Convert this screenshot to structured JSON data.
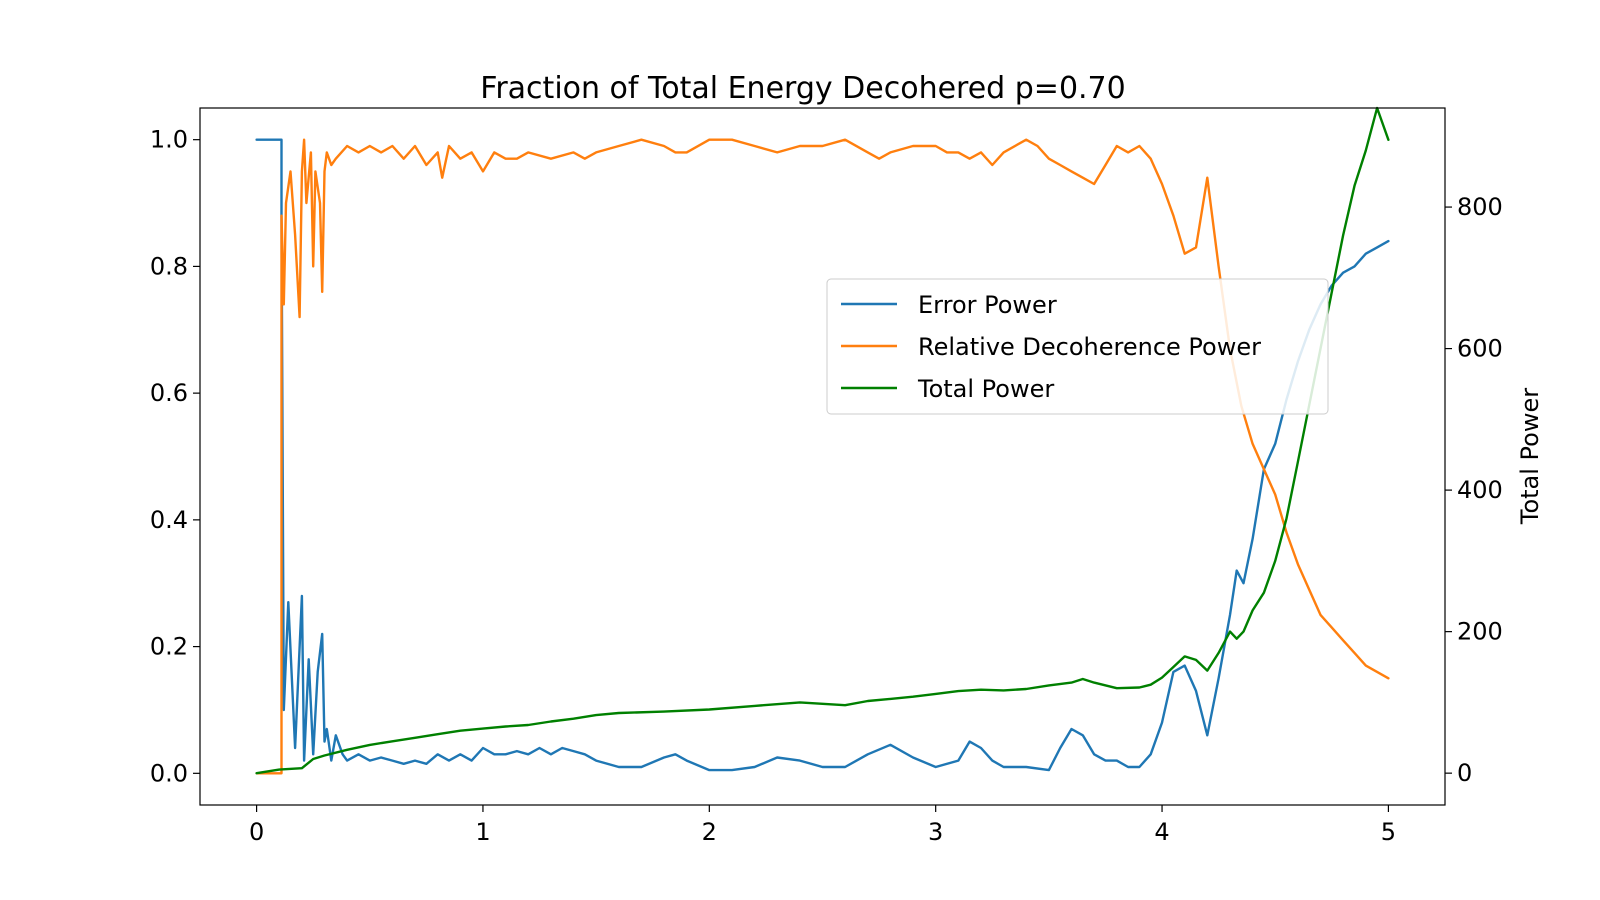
{
  "chart_data": {
    "type": "line",
    "title": "Fraction of Total Energy Decohered p=0.70",
    "xlabel": "",
    "ylabel_left": "",
    "ylabel_right": "Total Power",
    "xlim": [
      -0.25,
      5.25
    ],
    "ylim_left": [
      -0.05,
      1.05
    ],
    "ylim_right": [
      -45,
      940
    ],
    "x_ticks": [
      0,
      1,
      2,
      3,
      4,
      5
    ],
    "x_tick_labels": [
      "0",
      "1",
      "2",
      "3",
      "4",
      "5"
    ],
    "y_left_ticks": [
      0.0,
      0.2,
      0.4,
      0.6,
      0.8,
      1.0
    ],
    "y_left_tick_labels": [
      "0.0",
      "0.2",
      "0.4",
      "0.6",
      "0.8",
      "1.0"
    ],
    "y_right_ticks": [
      0,
      200,
      400,
      600,
      800
    ],
    "y_right_tick_labels": [
      "0",
      "200",
      "400",
      "600",
      "800"
    ],
    "grid": false,
    "legend_position": "center-right",
    "series": [
      {
        "name": "Error Power",
        "axis": "left",
        "color": "#1f77b4",
        "x": [
          0,
          0.11,
          0.11,
          0.12,
          0.14,
          0.17,
          0.2,
          0.21,
          0.23,
          0.25,
          0.27,
          0.29,
          0.3,
          0.31,
          0.33,
          0.35,
          0.38,
          0.4,
          0.45,
          0.5,
          0.55,
          0.6,
          0.65,
          0.7,
          0.75,
          0.8,
          0.85,
          0.9,
          0.95,
          1.0,
          1.05,
          1.1,
          1.15,
          1.2,
          1.25,
          1.3,
          1.35,
          1.4,
          1.45,
          1.5,
          1.6,
          1.7,
          1.8,
          1.85,
          1.9,
          2.0,
          2.1,
          2.2,
          2.3,
          2.4,
          2.5,
          2.6,
          2.7,
          2.8,
          2.9,
          3.0,
          3.1,
          3.15,
          3.2,
          3.25,
          3.3,
          3.4,
          3.5,
          3.55,
          3.6,
          3.65,
          3.7,
          3.75,
          3.8,
          3.85,
          3.9,
          3.95,
          4.0,
          4.05,
          4.1,
          4.15,
          4.2,
          4.25,
          4.3,
          4.33,
          4.36,
          4.4,
          4.45,
          4.5,
          4.55,
          4.6,
          4.65,
          4.7,
          4.75,
          4.8,
          4.85,
          4.9,
          4.95,
          5.0
        ],
        "y": [
          1.0,
          1.0,
          0.88,
          0.1,
          0.27,
          0.04,
          0.28,
          0.02,
          0.18,
          0.03,
          0.16,
          0.22,
          0.05,
          0.07,
          0.02,
          0.06,
          0.03,
          0.02,
          0.03,
          0.02,
          0.025,
          0.02,
          0.015,
          0.02,
          0.015,
          0.03,
          0.02,
          0.03,
          0.02,
          0.04,
          0.03,
          0.03,
          0.035,
          0.03,
          0.04,
          0.03,
          0.04,
          0.035,
          0.03,
          0.02,
          0.01,
          0.01,
          0.025,
          0.03,
          0.02,
          0.005,
          0.005,
          0.01,
          0.025,
          0.02,
          0.01,
          0.01,
          0.03,
          0.045,
          0.025,
          0.01,
          0.02,
          0.05,
          0.04,
          0.02,
          0.01,
          0.01,
          0.005,
          0.04,
          0.07,
          0.06,
          0.03,
          0.02,
          0.02,
          0.01,
          0.01,
          0.03,
          0.08,
          0.16,
          0.17,
          0.13,
          0.06,
          0.15,
          0.25,
          0.32,
          0.3,
          0.37,
          0.48,
          0.52,
          0.59,
          0.65,
          0.7,
          0.74,
          0.77,
          0.79,
          0.8,
          0.82,
          0.83,
          0.84
        ]
      },
      {
        "name": "Relative Decoherence Power",
        "axis": "left",
        "color": "#ff7f0e",
        "x": [
          0,
          0.11,
          0.11,
          0.12,
          0.13,
          0.15,
          0.17,
          0.19,
          0.2,
          0.21,
          0.22,
          0.24,
          0.25,
          0.26,
          0.28,
          0.29,
          0.3,
          0.31,
          0.33,
          0.35,
          0.4,
          0.45,
          0.5,
          0.55,
          0.6,
          0.65,
          0.7,
          0.75,
          0.8,
          0.82,
          0.85,
          0.9,
          0.95,
          1.0,
          1.05,
          1.1,
          1.15,
          1.2,
          1.3,
          1.4,
          1.45,
          1.5,
          1.6,
          1.7,
          1.8,
          1.85,
          1.9,
          2.0,
          2.1,
          2.2,
          2.3,
          2.4,
          2.5,
          2.6,
          2.7,
          2.75,
          2.8,
          2.9,
          3.0,
          3.05,
          3.1,
          3.15,
          3.2,
          3.25,
          3.3,
          3.4,
          3.45,
          3.5,
          3.55,
          3.6,
          3.65,
          3.7,
          3.75,
          3.8,
          3.85,
          3.9,
          3.95,
          4.0,
          4.05,
          4.1,
          4.15,
          4.2,
          4.25,
          4.3,
          4.35,
          4.4,
          4.45,
          4.5,
          4.55,
          4.6,
          4.65,
          4.7,
          4.75,
          4.8,
          4.85,
          4.9,
          4.95,
          5.0
        ],
        "y": [
          0.0,
          0.0,
          0.88,
          0.74,
          0.9,
          0.95,
          0.85,
          0.72,
          0.95,
          1.0,
          0.9,
          0.98,
          0.8,
          0.95,
          0.9,
          0.76,
          0.95,
          0.98,
          0.96,
          0.97,
          0.99,
          0.98,
          0.99,
          0.98,
          0.99,
          0.97,
          0.99,
          0.96,
          0.98,
          0.94,
          0.99,
          0.97,
          0.98,
          0.95,
          0.98,
          0.97,
          0.97,
          0.98,
          0.97,
          0.98,
          0.97,
          0.98,
          0.99,
          1.0,
          0.99,
          0.98,
          0.98,
          1.0,
          1.0,
          0.99,
          0.98,
          0.99,
          0.99,
          1.0,
          0.98,
          0.97,
          0.98,
          0.99,
          0.99,
          0.98,
          0.98,
          0.97,
          0.98,
          0.96,
          0.98,
          1.0,
          0.99,
          0.97,
          0.96,
          0.95,
          0.94,
          0.93,
          0.96,
          0.99,
          0.98,
          0.99,
          0.97,
          0.93,
          0.88,
          0.82,
          0.83,
          0.94,
          0.8,
          0.67,
          0.58,
          0.52,
          0.48,
          0.44,
          0.38,
          0.33,
          0.29,
          0.25,
          0.23,
          0.21,
          0.19,
          0.17,
          0.16,
          0.15
        ]
      },
      {
        "name": "Total Power",
        "axis": "right",
        "color": "#008000",
        "x": [
          0,
          0.1,
          0.2,
          0.25,
          0.3,
          0.4,
          0.5,
          0.6,
          0.7,
          0.8,
          0.9,
          1.0,
          1.1,
          1.2,
          1.3,
          1.4,
          1.5,
          1.6,
          1.8,
          2.0,
          2.2,
          2.4,
          2.6,
          2.7,
          2.8,
          2.9,
          3.0,
          3.1,
          3.2,
          3.3,
          3.4,
          3.5,
          3.6,
          3.65,
          3.7,
          3.8,
          3.9,
          3.95,
          4.0,
          4.05,
          4.1,
          4.15,
          4.2,
          4.25,
          4.3,
          4.33,
          4.36,
          4.4,
          4.45,
          4.5,
          4.55,
          4.6,
          4.65,
          4.7,
          4.75,
          4.8,
          4.85,
          4.9,
          4.95,
          5.0
        ],
        "y": [
          0,
          5,
          7,
          20,
          25,
          33,
          40,
          45,
          50,
          55,
          60,
          63,
          66,
          68,
          73,
          77,
          82,
          85,
          87,
          90,
          95,
          100,
          96,
          102,
          105,
          108,
          112,
          116,
          118,
          117,
          119,
          124,
          128,
          133,
          128,
          120,
          121,
          125,
          135,
          150,
          165,
          160,
          145,
          170,
          200,
          190,
          200,
          230,
          255,
          300,
          360,
          440,
          520,
          600,
          680,
          760,
          830,
          880,
          940,
          895
        ]
      }
    ]
  }
}
